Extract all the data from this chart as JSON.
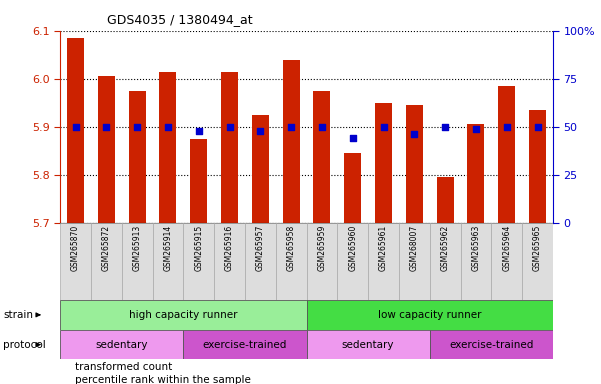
{
  "title": "GDS4035 / 1380494_at",
  "samples": [
    "GSM265870",
    "GSM265872",
    "GSM265913",
    "GSM265914",
    "GSM265915",
    "GSM265916",
    "GSM265957",
    "GSM265958",
    "GSM265959",
    "GSM265960",
    "GSM265961",
    "GSM268007",
    "GSM265962",
    "GSM265963",
    "GSM265964",
    "GSM265965"
  ],
  "bar_values": [
    6.085,
    6.005,
    5.975,
    6.015,
    5.875,
    6.015,
    5.925,
    6.04,
    5.975,
    5.845,
    5.95,
    5.945,
    5.795,
    5.905,
    5.985,
    5.935
  ],
  "percentile_values": [
    50,
    50,
    50,
    50,
    48,
    50,
    48,
    50,
    50,
    44,
    50,
    46,
    50,
    49,
    50,
    50
  ],
  "ylim_left": [
    5.7,
    6.1
  ],
  "ylim_right": [
    0,
    100
  ],
  "yticks_left": [
    5.7,
    5.8,
    5.9,
    6.0,
    6.1
  ],
  "yticks_right": [
    0,
    25,
    50,
    75,
    100
  ],
  "ytick_labels_right": [
    "0",
    "25",
    "50",
    "75",
    "100%"
  ],
  "bar_color": "#cc2200",
  "dot_color": "#0000cc",
  "bar_bottom": 5.7,
  "strain_groups": [
    {
      "label": "high capacity runner",
      "start": 0,
      "end": 8,
      "color": "#99ee99"
    },
    {
      "label": "low capacity runner",
      "start": 8,
      "end": 16,
      "color": "#44dd44"
    }
  ],
  "protocol_groups": [
    {
      "label": "sedentary",
      "start": 0,
      "end": 4,
      "color": "#ee99ee"
    },
    {
      "label": "exercise-trained",
      "start": 4,
      "end": 8,
      "color": "#cc55cc"
    },
    {
      "label": "sedentary",
      "start": 8,
      "end": 12,
      "color": "#ee99ee"
    },
    {
      "label": "exercise-trained",
      "start": 12,
      "end": 16,
      "color": "#cc55cc"
    }
  ],
  "left_axis_color": "#cc2200",
  "right_axis_color": "#0000cc",
  "legend_items": [
    {
      "label": "transformed count",
      "color": "#cc2200"
    },
    {
      "label": "percentile rank within the sample",
      "color": "#0000cc"
    }
  ]
}
